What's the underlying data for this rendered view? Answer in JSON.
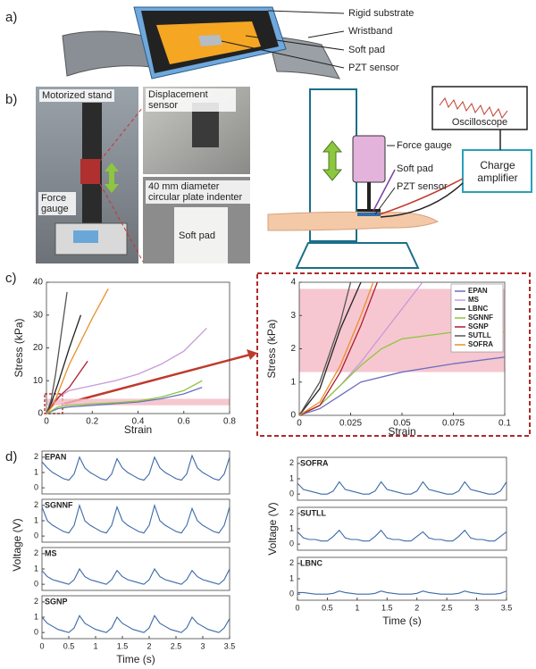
{
  "panel_labels": [
    "a)",
    "b)",
    "c)",
    "d)"
  ],
  "panel_a": {
    "labels": [
      "Rigid substrate",
      "Wristband",
      "Soft pad",
      "PZT sensor"
    ]
  },
  "panel_b": {
    "photo_labels": [
      "Motorized stand",
      "Displacement sensor",
      "Force gauge",
      "40 mm diameter circular plate indenter",
      "Soft pad"
    ],
    "diagram_labels": [
      "Oscilloscope",
      "Force gauge",
      "Soft pad",
      "PZT sensor",
      "Charge amplifier"
    ]
  },
  "panel_d_axes": [
    {
      "xlabel": "Time (s)",
      "ylabel": "Voltage (V)"
    },
    {
      "xlabel": "Time (s)",
      "ylabel": "Voltage (V)"
    }
  ],
  "chart_data": [
    {
      "type": "line",
      "xlabel": "Strain",
      "ylabel": "Stress (kPa)",
      "xlim": [
        0,
        0.8
      ],
      "xticks": [
        0,
        0.2,
        0.4,
        0.6,
        0.8
      ],
      "ylim": [
        0,
        40
      ],
      "yticks": [
        0,
        10,
        20,
        30,
        40
      ],
      "shaded_range": [
        2.5,
        4.5
      ],
      "shade_color": "#f4b9c4",
      "series": [
        {
          "color": "#6a6fc0",
          "x": [
            0,
            0.05,
            0.1,
            0.2,
            0.3,
            0.4,
            0.5,
            0.6,
            0.68
          ],
          "values": [
            0,
            1.5,
            2,
            2.5,
            3,
            3.5,
            4.5,
            6,
            8
          ]
        },
        {
          "color": "#c89ad8",
          "x": [
            0,
            0.02,
            0.05,
            0.1,
            0.2,
            0.3,
            0.4,
            0.5,
            0.6,
            0.7
          ],
          "values": [
            0,
            3,
            5,
            7,
            8.5,
            10,
            12,
            15,
            19,
            26
          ]
        },
        {
          "color": "#222222",
          "x": [
            0,
            0.02,
            0.05,
            0.1,
            0.15
          ],
          "values": [
            0,
            3,
            9,
            20,
            30
          ]
        },
        {
          "color": "#8dc63f",
          "x": [
            0,
            0.05,
            0.1,
            0.2,
            0.3,
            0.4,
            0.5,
            0.6,
            0.68
          ],
          "values": [
            0,
            2,
            2.5,
            3,
            3.3,
            3.8,
            5,
            7,
            10
          ]
        },
        {
          "color": "#b01c2e",
          "x": [
            0,
            0.03,
            0.06,
            0.1,
            0.14,
            0.18
          ],
          "values": [
            0,
            3,
            5.5,
            8,
            12,
            16
          ]
        },
        {
          "color": "#555555",
          "x": [
            0,
            0.02,
            0.04,
            0.06,
            0.09
          ],
          "values": [
            0,
            4,
            12,
            22,
            37
          ]
        },
        {
          "color": "#e8902a",
          "x": [
            0,
            0.03,
            0.06,
            0.1,
            0.15,
            0.2,
            0.27
          ],
          "values": [
            0,
            2.5,
            8,
            15,
            22,
            29,
            38
          ]
        }
      ]
    },
    {
      "type": "line",
      "xlabel": "Strain",
      "ylabel": "Stress (kPa)",
      "xlim": [
        0,
        0.1
      ],
      "xticks": [
        0,
        0.025,
        0.05,
        0.075,
        0.1
      ],
      "ylim": [
        0,
        4
      ],
      "yticks": [
        0,
        1,
        2,
        3,
        4
      ],
      "shaded_range": [
        1.3,
        3.8
      ],
      "shade_color": "#f4b9c4",
      "legend": "upper right",
      "series": [
        {
          "name": "EPAN",
          "color": "#6a6fc0",
          "x": [
            0,
            0.01,
            0.02,
            0.03,
            0.05,
            0.075,
            0.1
          ],
          "values": [
            0,
            0.2,
            0.6,
            1.0,
            1.3,
            1.55,
            1.75
          ]
        },
        {
          "name": "MS",
          "color": "#c89ad8",
          "x": [
            0,
            0.01,
            0.02,
            0.03,
            0.04,
            0.05,
            0.06
          ],
          "values": [
            0,
            0.3,
            0.9,
            1.6,
            2.4,
            3.2,
            4
          ]
        },
        {
          "name": "LBNC",
          "color": "#222222",
          "x": [
            0,
            0.01,
            0.02,
            0.03
          ],
          "values": [
            0,
            0.8,
            2.6,
            4
          ]
        },
        {
          "name": "SGNNF",
          "color": "#8dc63f",
          "x": [
            0,
            0.01,
            0.02,
            0.03,
            0.04,
            0.05,
            0.075,
            0.1
          ],
          "values": [
            0,
            0.3,
            0.9,
            1.5,
            2.0,
            2.3,
            2.5,
            2.5
          ]
        },
        {
          "name": "SGNP",
          "color": "#b01c2e",
          "x": [
            0,
            0.01,
            0.02,
            0.03,
            0.038
          ],
          "values": [
            0,
            0.3,
            1.3,
            2.7,
            4
          ]
        },
        {
          "name": "SUTLL",
          "color": "#555555",
          "x": [
            0,
            0.01,
            0.02,
            0.025
          ],
          "values": [
            0,
            1,
            2.8,
            4
          ]
        },
        {
          "name": "SOFRA",
          "color": "#e8902a",
          "x": [
            0,
            0.01,
            0.02,
            0.03,
            0.036
          ],
          "values": [
            0,
            0.4,
            1.5,
            3,
            4
          ]
        }
      ]
    },
    {
      "type": "line",
      "title": "EPAN",
      "xlim": [
        0,
        3.5
      ],
      "ylim": [
        -0.4,
        2.4
      ],
      "yticks": [
        0,
        1,
        2
      ],
      "x": [
        0,
        0.1,
        0.2,
        0.3,
        0.4,
        0.5,
        0.6,
        0.7,
        0.8,
        0.9,
        1,
        1.1,
        1.2,
        1.3,
        1.4,
        1.5,
        1.6,
        1.7,
        1.8,
        1.9,
        2,
        2.1,
        2.2,
        2.3,
        2.4,
        2.5,
        2.6,
        2.7,
        2.8,
        2.9,
        3,
        3.1,
        3.2,
        3.3,
        3.4,
        3.5
      ],
      "series": [
        {
          "color": "#3b6aa8",
          "values": [
            1.7,
            1.3,
            1.0,
            0.8,
            0.6,
            0.5,
            0.9,
            2.0,
            1.3,
            1.0,
            0.8,
            0.6,
            0.5,
            0.9,
            1.9,
            1.3,
            1.0,
            0.8,
            0.6,
            0.5,
            0.9,
            2.0,
            1.3,
            1.0,
            0.8,
            0.6,
            0.5,
            0.9,
            2.1,
            1.3,
            1.0,
            0.8,
            0.6,
            0.5,
            0.9,
            2.0
          ]
        }
      ]
    },
    {
      "type": "line",
      "title": "SGNNF",
      "xlim": [
        0,
        3.5
      ],
      "ylim": [
        -0.4,
        2.4
      ],
      "yticks": [
        0,
        1,
        2
      ],
      "x": [
        0,
        0.1,
        0.2,
        0.3,
        0.4,
        0.5,
        0.6,
        0.7,
        0.8,
        0.9,
        1,
        1.1,
        1.2,
        1.3,
        1.4,
        1.5,
        1.6,
        1.7,
        1.8,
        1.9,
        2,
        2.1,
        2.2,
        2.3,
        2.4,
        2.5,
        2.6,
        2.7,
        2.8,
        2.9,
        3,
        3.1,
        3.2,
        3.3,
        3.4,
        3.5
      ],
      "series": [
        {
          "color": "#3b6aa8",
          "values": [
            1.9,
            1.0,
            0.7,
            0.5,
            0.3,
            0.2,
            0.7,
            2.0,
            1.0,
            0.7,
            0.5,
            0.3,
            0.2,
            0.7,
            1.9,
            1.0,
            0.7,
            0.5,
            0.3,
            0.2,
            0.7,
            2.0,
            1.0,
            0.7,
            0.5,
            0.3,
            0.2,
            0.7,
            1.8,
            1.0,
            0.7,
            0.5,
            0.3,
            0.2,
            0.7,
            1.9
          ]
        }
      ]
    },
    {
      "type": "line",
      "title": "MS",
      "xlim": [
        0,
        3.5
      ],
      "ylim": [
        -0.4,
        2.4
      ],
      "yticks": [
        0,
        1,
        2
      ],
      "x": [
        0,
        0.1,
        0.2,
        0.3,
        0.4,
        0.5,
        0.6,
        0.7,
        0.8,
        0.9,
        1,
        1.1,
        1.2,
        1.3,
        1.4,
        1.5,
        1.6,
        1.7,
        1.8,
        1.9,
        2,
        2.1,
        2.2,
        2.3,
        2.4,
        2.5,
        2.6,
        2.7,
        2.8,
        2.9,
        3,
        3.1,
        3.2,
        3.3,
        3.4,
        3.5
      ],
      "series": [
        {
          "color": "#3b6aa8",
          "values": [
            0.9,
            0.5,
            0.3,
            0.2,
            0.1,
            0.0,
            0.3,
            1.0,
            0.5,
            0.3,
            0.2,
            0.1,
            0.0,
            0.3,
            0.9,
            0.5,
            0.3,
            0.2,
            0.1,
            0.0,
            0.3,
            1.0,
            0.5,
            0.3,
            0.2,
            0.1,
            0.0,
            0.3,
            0.9,
            0.5,
            0.3,
            0.2,
            0.1,
            0.0,
            0.3,
            1.0
          ]
        }
      ]
    },
    {
      "type": "line",
      "title": "SGNP",
      "xlim": [
        0,
        3.5
      ],
      "ylim": [
        -0.4,
        2.4
      ],
      "yticks": [
        0,
        1,
        2
      ],
      "xticks": [
        0,
        0.5,
        1,
        1.5,
        2,
        2.5,
        3,
        3.5
      ],
      "x": [
        0,
        0.1,
        0.2,
        0.3,
        0.4,
        0.5,
        0.6,
        0.7,
        0.8,
        0.9,
        1,
        1.1,
        1.2,
        1.3,
        1.4,
        1.5,
        1.6,
        1.7,
        1.8,
        1.9,
        2,
        2.1,
        2.2,
        2.3,
        2.4,
        2.5,
        2.6,
        2.7,
        2.8,
        2.9,
        3,
        3.1,
        3.2,
        3.3,
        3.4,
        3.5
      ],
      "series": [
        {
          "color": "#3b6aa8",
          "values": [
            1.0,
            0.6,
            0.4,
            0.2,
            0.1,
            0.0,
            0.3,
            1.1,
            0.6,
            0.4,
            0.2,
            0.1,
            0.0,
            0.3,
            1.0,
            0.6,
            0.4,
            0.2,
            0.1,
            0.0,
            0.3,
            1.1,
            0.6,
            0.4,
            0.2,
            0.1,
            0.0,
            0.3,
            1.0,
            0.6,
            0.4,
            0.2,
            0.1,
            0.0,
            0.3,
            0.9
          ]
        }
      ]
    },
    {
      "type": "line",
      "title": "SOFRA",
      "xlim": [
        0,
        3.5
      ],
      "ylim": [
        -0.4,
        2.4
      ],
      "yticks": [
        0,
        1,
        2
      ],
      "x": [
        0,
        0.1,
        0.2,
        0.3,
        0.4,
        0.5,
        0.6,
        0.7,
        0.8,
        0.9,
        1,
        1.1,
        1.2,
        1.3,
        1.4,
        1.5,
        1.6,
        1.7,
        1.8,
        1.9,
        2,
        2.1,
        2.2,
        2.3,
        2.4,
        2.5,
        2.6,
        2.7,
        2.8,
        2.9,
        3,
        3.1,
        3.2,
        3.3,
        3.4,
        3.5
      ],
      "series": [
        {
          "color": "#3b6aa8",
          "values": [
            0.7,
            0.3,
            0.2,
            0.1,
            0.0,
            0.0,
            0.2,
            0.8,
            0.3,
            0.2,
            0.1,
            0.0,
            0.0,
            0.2,
            0.8,
            0.3,
            0.2,
            0.1,
            0.0,
            0.0,
            0.2,
            0.8,
            0.3,
            0.2,
            0.1,
            0.0,
            0.0,
            0.2,
            0.8,
            0.3,
            0.2,
            0.1,
            0.0,
            0.0,
            0.2,
            0.8
          ]
        }
      ]
    },
    {
      "type": "line",
      "title": "SUTLL",
      "xlim": [
        0,
        3.5
      ],
      "ylim": [
        -0.4,
        2.4
      ],
      "yticks": [
        0,
        1,
        2
      ],
      "x": [
        0,
        0.1,
        0.2,
        0.3,
        0.4,
        0.5,
        0.6,
        0.7,
        0.8,
        0.9,
        1,
        1.1,
        1.2,
        1.3,
        1.4,
        1.5,
        1.6,
        1.7,
        1.8,
        1.9,
        2,
        2.1,
        2.2,
        2.3,
        2.4,
        2.5,
        2.6,
        2.7,
        2.8,
        2.9,
        3,
        3.1,
        3.2,
        3.3,
        3.4,
        3.5
      ],
      "series": [
        {
          "color": "#3b6aa8",
          "values": [
            0.8,
            0.4,
            0.3,
            0.3,
            0.2,
            0.2,
            0.5,
            0.9,
            0.4,
            0.3,
            0.3,
            0.2,
            0.2,
            0.5,
            0.9,
            0.4,
            0.3,
            0.3,
            0.2,
            0.2,
            0.5,
            0.8,
            0.4,
            0.3,
            0.3,
            0.2,
            0.2,
            0.5,
            0.9,
            0.4,
            0.3,
            0.3,
            0.2,
            0.2,
            0.5,
            0.8
          ]
        }
      ]
    },
    {
      "type": "line",
      "title": "LBNC",
      "xlim": [
        0,
        3.5
      ],
      "ylim": [
        -0.4,
        2.4
      ],
      "yticks": [
        0,
        1,
        2
      ],
      "xticks": [
        0,
        0.5,
        1,
        1.5,
        2,
        2.5,
        3,
        3.5
      ],
      "x": [
        0,
        0.1,
        0.2,
        0.3,
        0.4,
        0.5,
        0.6,
        0.7,
        0.8,
        0.9,
        1,
        1.1,
        1.2,
        1.3,
        1.4,
        1.5,
        1.6,
        1.7,
        1.8,
        1.9,
        2,
        2.1,
        2.2,
        2.3,
        2.4,
        2.5,
        2.6,
        2.7,
        2.8,
        2.9,
        3,
        3.1,
        3.2,
        3.3,
        3.4,
        3.5
      ],
      "series": [
        {
          "color": "#3b6aa8",
          "values": [
            0.1,
            0.1,
            0.05,
            0.0,
            0.0,
            0.0,
            0.05,
            0.2,
            0.1,
            0.05,
            0.0,
            0.0,
            0.0,
            0.05,
            0.2,
            0.1,
            0.05,
            0.0,
            0.0,
            0.0,
            0.05,
            0.2,
            0.1,
            0.05,
            0.0,
            0.0,
            0.0,
            0.05,
            0.2,
            0.1,
            0.05,
            0.0,
            0.0,
            0.0,
            0.05,
            0.2
          ]
        }
      ]
    }
  ]
}
